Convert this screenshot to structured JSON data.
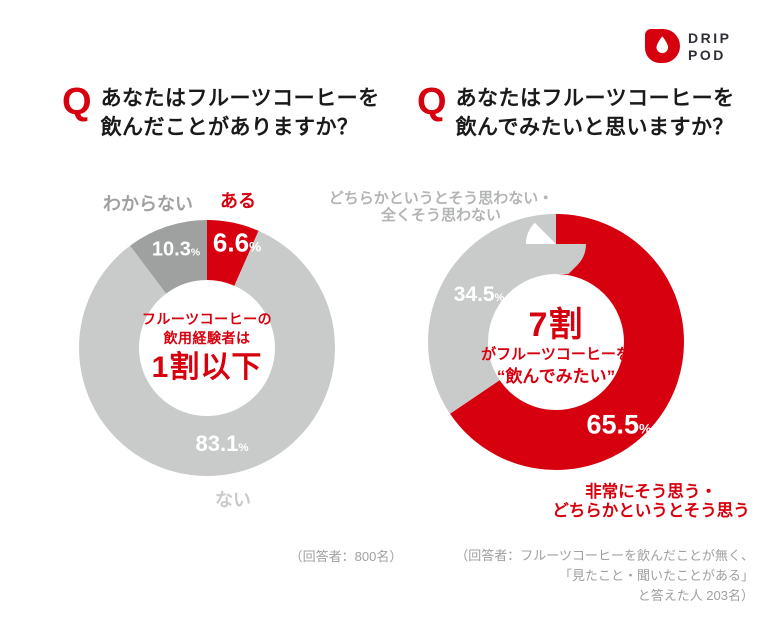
{
  "logo": {
    "line1": "DRIP",
    "line2": "POD"
  },
  "units": {
    "percent": "%"
  },
  "questions": {
    "q_mark": "Q",
    "left": {
      "line1": "あなたはフルーツコーヒーを",
      "line2": "飲んだことがありますか？"
    },
    "right": {
      "line1": "あなたはフルーツコーヒーを",
      "line2": "飲んでみたいと思いますか？"
    }
  },
  "colors": {
    "brand_red": "#d7000f",
    "light_gray": "#c9caca",
    "dark_gray": "#9fa0a0",
    "label_gray": "#b3b4b5"
  },
  "chart_data": [
    {
      "type": "pie",
      "variant": "donut",
      "question": "あなたはフルーツコーヒーを飲んだことがありますか？",
      "start_angle_deg": 0,
      "direction": "clockwise",
      "slices": [
        {
          "label": "ある",
          "value": 6.6,
          "color": "#d7000f"
        },
        {
          "label": "ない",
          "value": 83.1,
          "color": "#c9caca"
        },
        {
          "label": "わからない",
          "value": 10.3,
          "color": "#9fa0a0"
        }
      ],
      "center_text": {
        "line1": "フルーツコーヒーの",
        "line2": "飲用経験者は",
        "line3": "1割以下"
      },
      "note": "（回答者：800名）"
    },
    {
      "type": "pie",
      "variant": "donut",
      "question": "あなたはフルーツコーヒーを飲んでみたいと思いますか？",
      "start_angle_deg": 0,
      "direction": "clockwise",
      "slices": [
        {
          "label": "非常にそう思う・どちらかというとそう思う",
          "value": 65.5,
          "color": "#d7000f"
        },
        {
          "label": "どちらかというとそう思わない・全くそう思わない",
          "value": 34.5,
          "color": "#c9caca"
        }
      ],
      "center_text": {
        "line1": "7割",
        "line2": "がフルーツコーヒーを",
        "line3": "“飲んでみたい”"
      },
      "labels": {
        "negative_line1": "どちらかというとそう思わない・",
        "negative_line2": "全くそう思わない",
        "positive_line1": "非常にそう思う・",
        "positive_line2": "どちらかというとそう思う"
      },
      "note_line1": "（回答者：フルーツコーヒーを飲んだことが無く、",
      "note_line2": "「見たこと・聞いたことがある」",
      "note_line3": "と答えた人 203名）"
    }
  ]
}
